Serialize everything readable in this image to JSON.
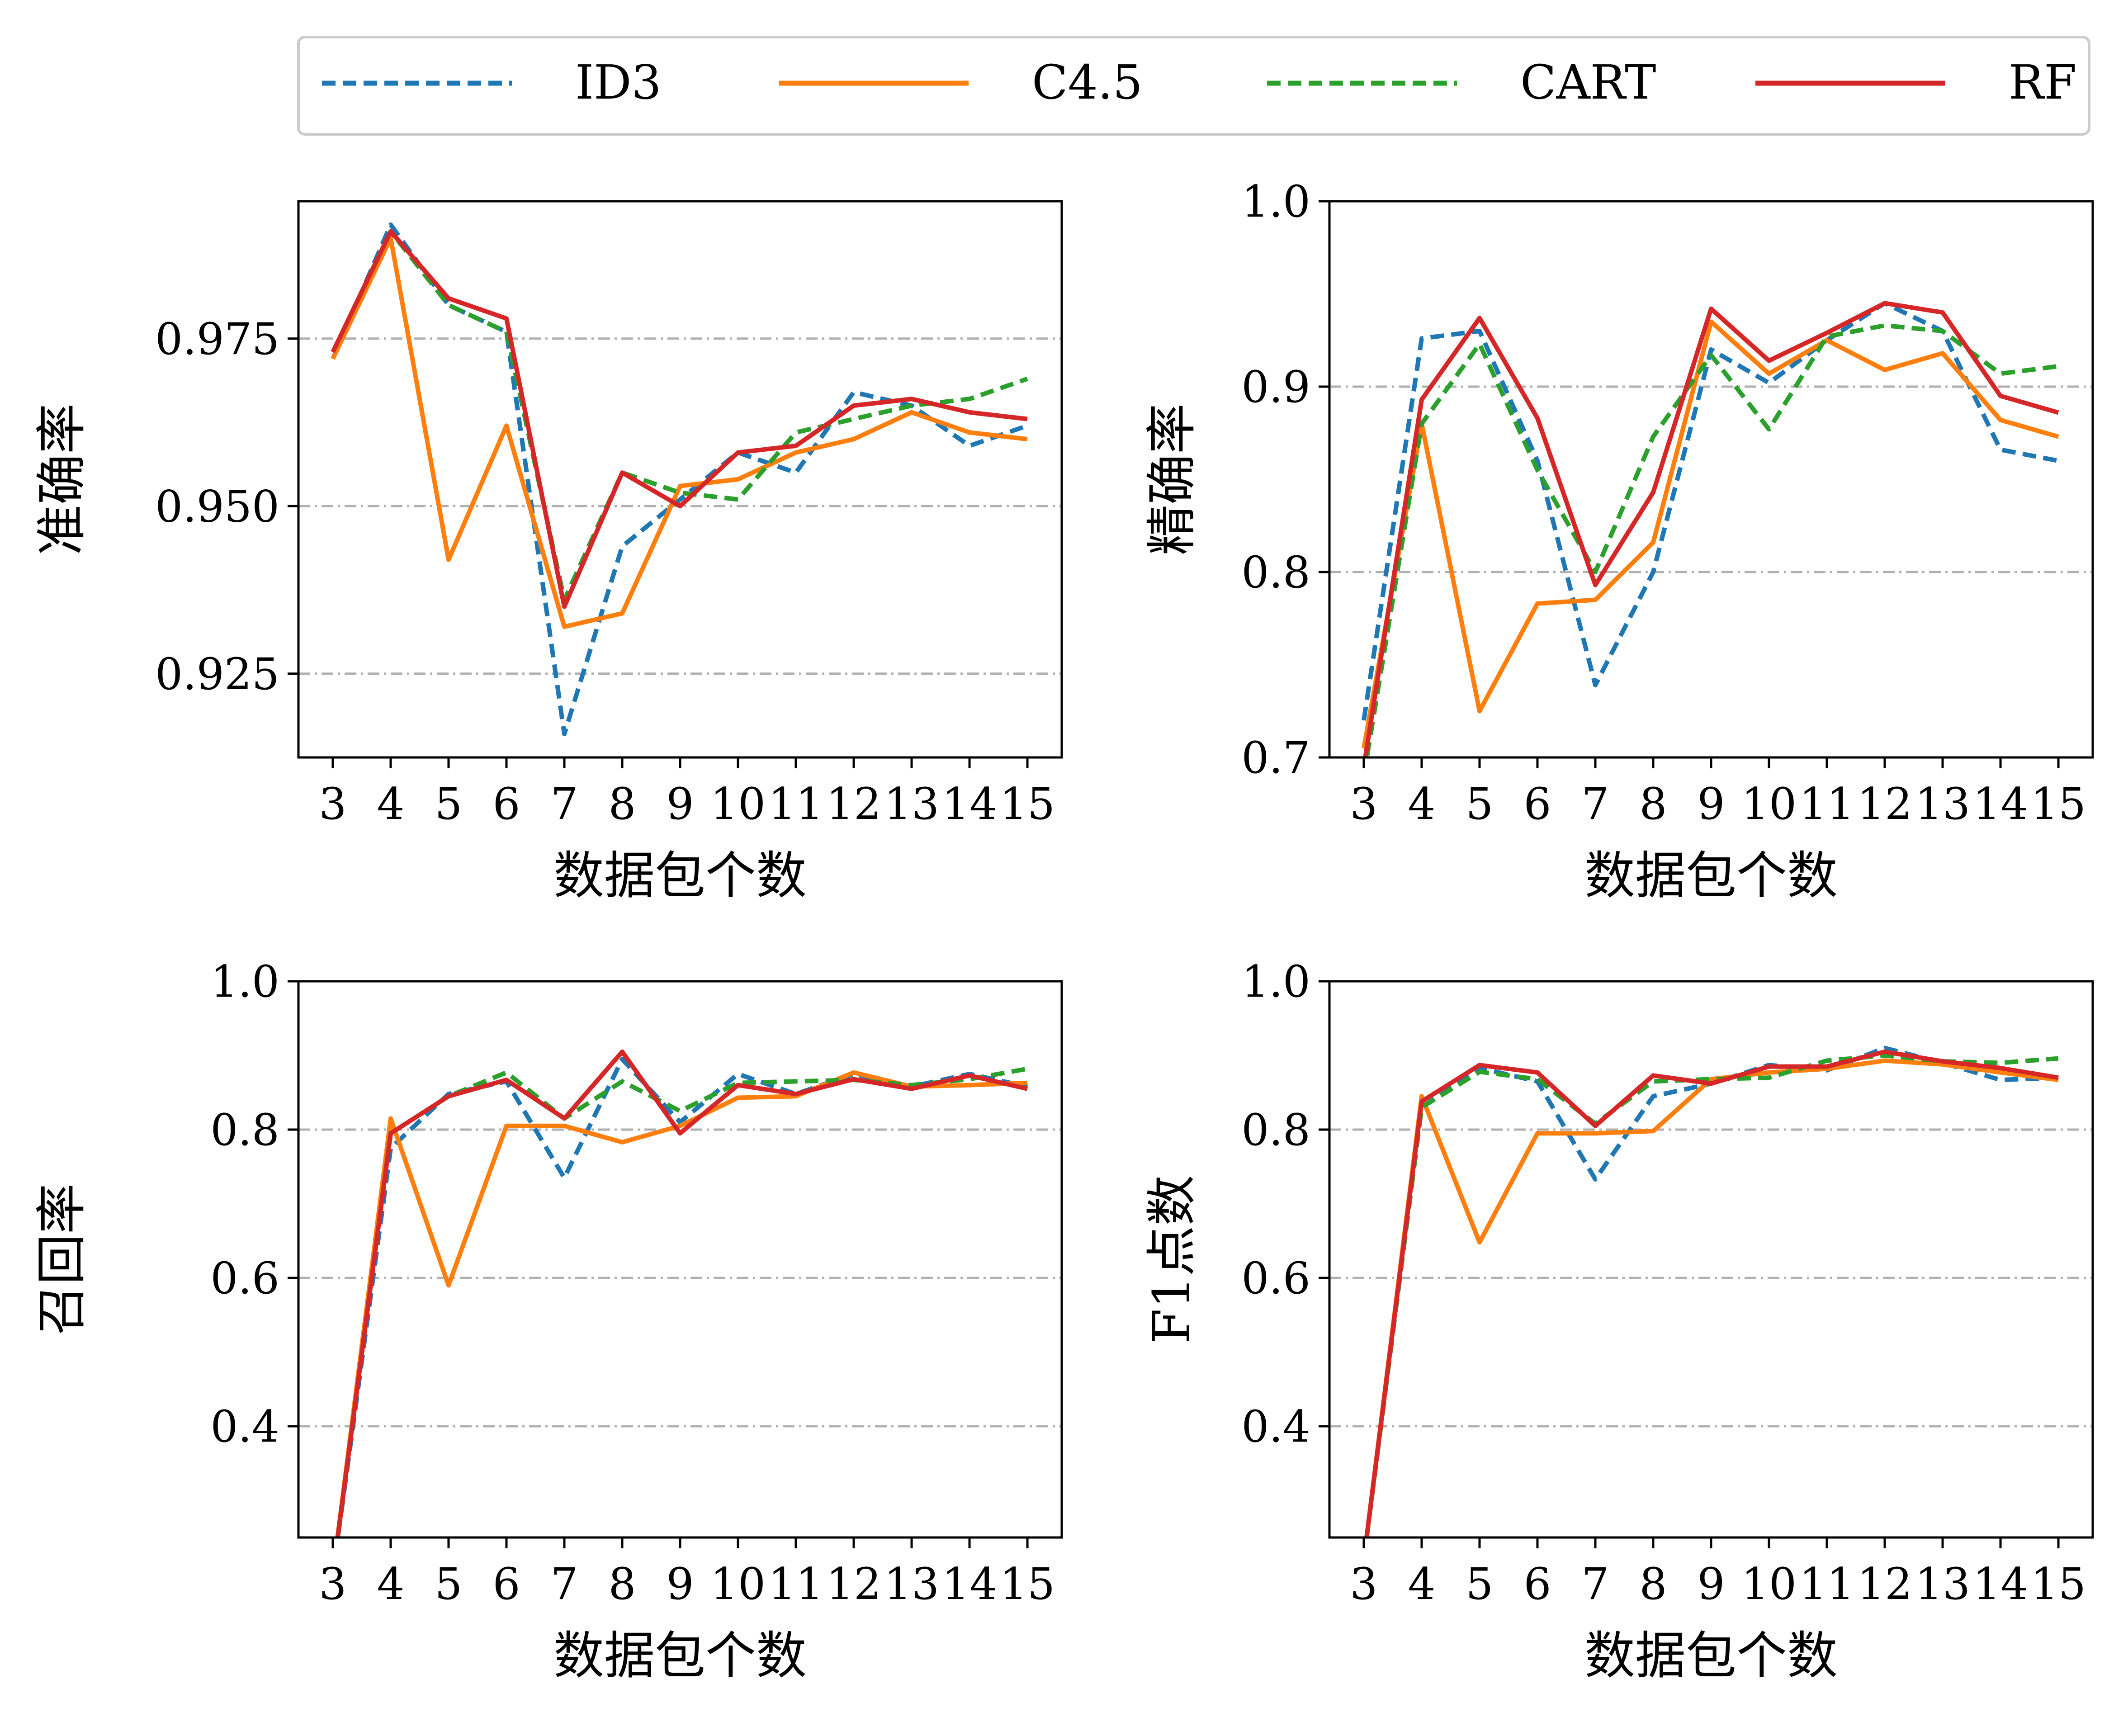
{
  "legend": {
    "placement": "top-center",
    "entries": [
      {
        "label": "ID3",
        "color": "#1f77b4",
        "style": "dashed"
      },
      {
        "label": "C4.5",
        "color": "#ff7f0e",
        "style": "solid"
      },
      {
        "label": "CART",
        "color": "#2ca02c",
        "style": "dashed"
      },
      {
        "label": "RF",
        "color": "#d62728",
        "style": "solid"
      }
    ]
  },
  "chart_data": [
    {
      "type": "line",
      "title": "",
      "xlabel": "数据包个数",
      "ylabel": "准确率",
      "x": [
        3,
        4,
        5,
        6,
        7,
        8,
        9,
        10,
        11,
        12,
        13,
        14,
        15
      ],
      "x_tick_labels": [
        "3",
        "4",
        "5",
        "6",
        "7",
        "8",
        "9",
        "10",
        "11",
        "12",
        "13",
        "14",
        "15"
      ],
      "ylim": [
        0.9125,
        0.9955
      ],
      "yticks": [
        0.925,
        0.95,
        0.975
      ],
      "y_tick_labels": [
        "0.925",
        "0.950",
        "0.975"
      ],
      "grid": "horizontal dash-dot",
      "series": [
        {
          "name": "ID3",
          "values": [
            0.972,
            0.992,
            0.98,
            0.976,
            0.916,
            0.944,
            0.951,
            0.958,
            0.955,
            0.967,
            0.965,
            0.959,
            0.962
          ]
        },
        {
          "name": "C4.5",
          "values": [
            0.972,
            0.99,
            0.942,
            0.962,
            0.932,
            0.934,
            0.953,
            0.954,
            0.958,
            0.96,
            0.964,
            0.961,
            0.96
          ]
        },
        {
          "name": "CART",
          "values": [
            0.973,
            0.991,
            0.98,
            0.976,
            0.936,
            0.955,
            0.952,
            0.951,
            0.961,
            0.963,
            0.965,
            0.966,
            0.969
          ]
        },
        {
          "name": "RF",
          "values": [
            0.973,
            0.991,
            0.981,
            0.978,
            0.935,
            0.955,
            0.95,
            0.958,
            0.959,
            0.965,
            0.966,
            0.964,
            0.963
          ]
        }
      ]
    },
    {
      "type": "line",
      "title": "",
      "xlabel": "数据包个数",
      "ylabel": "精确率",
      "x": [
        3,
        4,
        5,
        6,
        7,
        8,
        9,
        10,
        11,
        12,
        13,
        14,
        15
      ],
      "x_tick_labels": [
        "3",
        "4",
        "5",
        "6",
        "7",
        "8",
        "9",
        "10",
        "11",
        "12",
        "13",
        "14",
        "15"
      ],
      "ylim": [
        0.7,
        1.0
      ],
      "yticks": [
        0.7,
        0.8,
        0.9,
        1.0
      ],
      "y_tick_labels": [
        "0.7",
        "0.8",
        "0.9",
        "1.0"
      ],
      "grid": "horizontal dash-dot",
      "series": [
        {
          "name": "ID3",
          "values": [
            0.72,
            0.926,
            0.93,
            0.86,
            0.739,
            0.8,
            0.92,
            0.902,
            0.925,
            0.945,
            0.93,
            0.866,
            0.86
          ]
        },
        {
          "name": "C4.5",
          "values": [
            0.705,
            0.88,
            0.725,
            0.783,
            0.785,
            0.816,
            0.935,
            0.907,
            0.925,
            0.909,
            0.918,
            0.882,
            0.873
          ]
        },
        {
          "name": "CART",
          "values": [
            0.69,
            0.88,
            0.923,
            0.855,
            0.8,
            0.873,
            0.917,
            0.877,
            0.927,
            0.933,
            0.93,
            0.907,
            0.911
          ]
        },
        {
          "name": "RF",
          "values": [
            0.695,
            0.893,
            0.937,
            0.883,
            0.793,
            0.843,
            0.942,
            0.914,
            0.929,
            0.945,
            0.94,
            0.895,
            0.886
          ]
        }
      ]
    },
    {
      "type": "line",
      "title": "",
      "xlabel": "数据包个数",
      "ylabel": "召回率",
      "x": [
        3,
        4,
        5,
        6,
        7,
        8,
        9,
        10,
        11,
        12,
        13,
        14,
        15
      ],
      "x_tick_labels": [
        "3",
        "4",
        "5",
        "6",
        "7",
        "8",
        "9",
        "10",
        "11",
        "12",
        "13",
        "14",
        "15"
      ],
      "ylim": [
        0.25,
        1.0
      ],
      "yticks": [
        0.4,
        0.6,
        0.8,
        1.0
      ],
      "y_tick_labels": [
        "0.4",
        "0.6",
        "0.8",
        "1.0"
      ],
      "grid": "horizontal dash-dot",
      "series": [
        {
          "name": "ID3",
          "values": [
            0.2,
            0.775,
            0.848,
            0.865,
            0.735,
            0.895,
            0.81,
            0.875,
            0.848,
            0.875,
            0.858,
            0.875,
            0.858
          ]
        },
        {
          "name": "C4.5",
          "values": [
            0.2,
            0.815,
            0.59,
            0.805,
            0.805,
            0.783,
            0.805,
            0.843,
            0.845,
            0.877,
            0.858,
            0.86,
            0.863
          ]
        },
        {
          "name": "CART",
          "values": [
            0.2,
            0.795,
            0.845,
            0.877,
            0.815,
            0.865,
            0.825,
            0.863,
            0.865,
            0.867,
            0.86,
            0.868,
            0.882
          ]
        },
        {
          "name": "RF",
          "values": [
            0.2,
            0.795,
            0.845,
            0.867,
            0.815,
            0.905,
            0.795,
            0.86,
            0.848,
            0.868,
            0.855,
            0.873,
            0.855
          ]
        }
      ]
    },
    {
      "type": "line",
      "title": "",
      "xlabel": "数据包个数",
      "ylabel": "F1点数",
      "x": [
        3,
        4,
        5,
        6,
        7,
        8,
        9,
        10,
        11,
        12,
        13,
        14,
        15
      ],
      "x_tick_labels": [
        "3",
        "4",
        "5",
        "6",
        "7",
        "8",
        "9",
        "10",
        "11",
        "12",
        "13",
        "14",
        "15"
      ],
      "ylim": [
        0.25,
        1.0
      ],
      "yticks": [
        0.4,
        0.6,
        0.8,
        1.0
      ],
      "y_tick_labels": [
        "0.4",
        "0.6",
        "0.8",
        "1.0"
      ],
      "grid": "horizontal dash-dot",
      "series": [
        {
          "name": "ID3",
          "values": [
            0.22,
            0.83,
            0.883,
            0.865,
            0.733,
            0.845,
            0.862,
            0.887,
            0.88,
            0.91,
            0.89,
            0.867,
            0.87
          ]
        },
        {
          "name": "C4.5",
          "values": [
            0.22,
            0.845,
            0.648,
            0.795,
            0.795,
            0.798,
            0.868,
            0.877,
            0.882,
            0.893,
            0.888,
            0.877,
            0.867
          ]
        },
        {
          "name": "CART",
          "values": [
            0.22,
            0.83,
            0.878,
            0.868,
            0.808,
            0.865,
            0.868,
            0.87,
            0.893,
            0.9,
            0.892,
            0.89,
            0.896
          ]
        },
        {
          "name": "RF",
          "values": [
            0.22,
            0.838,
            0.887,
            0.877,
            0.805,
            0.873,
            0.862,
            0.885,
            0.885,
            0.905,
            0.892,
            0.883,
            0.87
          ]
        }
      ]
    }
  ]
}
